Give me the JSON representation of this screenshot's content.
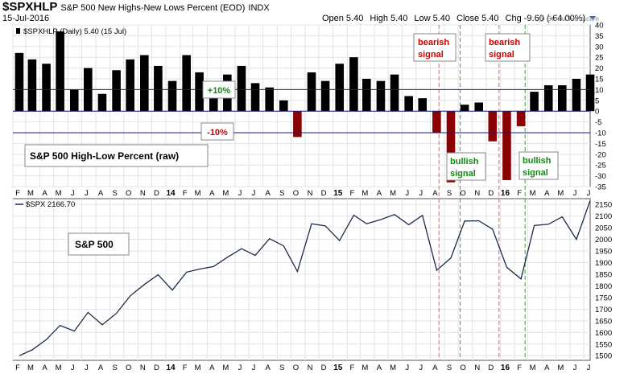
{
  "header": {
    "symbol": "$SPXHLP",
    "description": "S&P 500 New Highs-New Lows Percent (EOD)",
    "exchange": "INDX",
    "date": "15-Jul-2016",
    "open_label": "Open",
    "open_value": "5.40",
    "high_label": "High",
    "high_value": "5.40",
    "low_label": "Low",
    "low_value": "5.40",
    "close_label": "Close",
    "close_value": "5.40",
    "chg_label": "Chg",
    "chg_value": "-9.60 (-64.00%)",
    "watermark": "@ StockCharts.com"
  },
  "chart_data": [
    {
      "type": "bar",
      "legend": "$SPXHLP (Daily) 5.40 (15 Jul)",
      "ylim": [
        -35,
        40
      ],
      "yticks": [
        40,
        35,
        30,
        25,
        20,
        15,
        10,
        5,
        0,
        -5,
        -10,
        -15,
        -20,
        -25,
        -30,
        -35
      ],
      "reference_lines": [
        10,
        0,
        -10
      ],
      "x_start": "2013-02-01",
      "x_end": "2016-07-15",
      "colors": {
        "positive": "#000000",
        "negative": "#8b0000"
      },
      "series": [
        {
          "x": [
            "2013-02",
            "2013-03",
            "2013-04",
            "2013-05",
            "2013-06",
            "2013-07",
            "2013-08",
            "2013-09",
            "2013-10",
            "2013-11",
            "2013-12",
            "2014-01",
            "2014-02",
            "2014-03",
            "2014-04",
            "2014-05",
            "2014-06",
            "2014-07",
            "2014-08",
            "2014-09",
            "2014-10",
            "2014-11",
            "2014-12",
            "2015-01",
            "2015-02",
            "2015-03",
            "2015-04",
            "2015-05",
            "2015-06",
            "2015-07",
            "2015-08",
            "2015-09",
            "2015-10",
            "2015-11",
            "2015-12",
            "2016-01",
            "2016-02",
            "2016-03",
            "2016-04",
            "2016-05",
            "2016-06",
            "2016-07"
          ],
          "values": [
            27,
            24,
            22,
            37,
            10,
            20,
            8,
            19,
            24,
            26,
            21,
            14,
            26,
            18,
            13,
            17,
            21,
            13,
            11,
            5,
            -12,
            18,
            14,
            22,
            25,
            15,
            14,
            17,
            7,
            6,
            -10,
            -33,
            3,
            4,
            -14,
            -32,
            -7,
            9,
            12,
            12,
            15,
            17
          ]
        }
      ],
      "annotations": [
        "+10%",
        "-10%",
        "S&P 500 High-Low Percent (raw)",
        "bearish signal",
        "bearish signal",
        "bullish signal",
        "bullish signal"
      ]
    },
    {
      "type": "line",
      "legend": "$SPX 2166.70",
      "ylim": [
        1480,
        2175
      ],
      "yticks": [
        2150,
        2100,
        2050,
        2000,
        1950,
        1900,
        1850,
        1800,
        1750,
        1700,
        1650,
        1600,
        1550,
        1500
      ],
      "x_start": "2013-02-01",
      "x_end": "2016-07-15",
      "series": [
        {
          "name": "S&P 500",
          "x": [
            "2013-02",
            "2013-03",
            "2013-04",
            "2013-05",
            "2013-06",
            "2013-07",
            "2013-08",
            "2013-09",
            "2013-10",
            "2013-11",
            "2013-12",
            "2014-01",
            "2014-02",
            "2014-03",
            "2014-04",
            "2014-05",
            "2014-06",
            "2014-07",
            "2014-08",
            "2014-09",
            "2014-10",
            "2014-11",
            "2014-12",
            "2015-01",
            "2015-02",
            "2015-03",
            "2015-04",
            "2015-05",
            "2015-06",
            "2015-07",
            "2015-08",
            "2015-09",
            "2015-10",
            "2015-11",
            "2015-12",
            "2016-01",
            "2016-02",
            "2016-03",
            "2016-04",
            "2016-05",
            "2016-06",
            "2016-07"
          ],
          "values": [
            1500,
            1525,
            1569,
            1630,
            1606,
            1686,
            1633,
            1682,
            1757,
            1806,
            1848,
            1782,
            1859,
            1872,
            1883,
            1923,
            1960,
            1931,
            2003,
            1972,
            1862,
            2067,
            2058,
            1995,
            2104,
            2067,
            2085,
            2107,
            2063,
            2103,
            1867,
            1920,
            2079,
            2080,
            2044,
            1880,
            1830,
            2060,
            2065,
            2097,
            2000,
            2167
          ]
        }
      ]
    }
  ],
  "x_axis": {
    "labels": [
      {
        "date": "2013-02",
        "text": "F"
      },
      {
        "date": "2013-03",
        "text": "M"
      },
      {
        "date": "2013-04",
        "text": "A"
      },
      {
        "date": "2013-05",
        "text": "M"
      },
      {
        "date": "2013-06",
        "text": "J"
      },
      {
        "date": "2013-07",
        "text": "J"
      },
      {
        "date": "2013-08",
        "text": "A"
      },
      {
        "date": "2013-09",
        "text": "S"
      },
      {
        "date": "2013-10",
        "text": "O"
      },
      {
        "date": "2013-11",
        "text": "N"
      },
      {
        "date": "2013-12",
        "text": "D"
      },
      {
        "date": "2014-01",
        "text": "14",
        "bold": true
      },
      {
        "date": "2014-02",
        "text": "F"
      },
      {
        "date": "2014-03",
        "text": "M"
      },
      {
        "date": "2014-04",
        "text": "A"
      },
      {
        "date": "2014-05",
        "text": "M"
      },
      {
        "date": "2014-06",
        "text": "J"
      },
      {
        "date": "2014-07",
        "text": "J"
      },
      {
        "date": "2014-08",
        "text": "A"
      },
      {
        "date": "2014-09",
        "text": "S"
      },
      {
        "date": "2014-10",
        "text": "O"
      },
      {
        "date": "2014-11",
        "text": "N"
      },
      {
        "date": "2014-12",
        "text": "D"
      },
      {
        "date": "2015-01",
        "text": "15",
        "bold": true
      },
      {
        "date": "2015-02",
        "text": "F"
      },
      {
        "date": "2015-03",
        "text": "M"
      },
      {
        "date": "2015-04",
        "text": "A"
      },
      {
        "date": "2015-05",
        "text": "M"
      },
      {
        "date": "2015-06",
        "text": "J"
      },
      {
        "date": "2015-07",
        "text": "J"
      },
      {
        "date": "2015-08",
        "text": "A"
      },
      {
        "date": "2015-09",
        "text": "S"
      },
      {
        "date": "2015-10",
        "text": "O"
      },
      {
        "date": "2015-11",
        "text": "N"
      },
      {
        "date": "2015-12",
        "text": "D"
      },
      {
        "date": "2016-01",
        "text": "16",
        "bold": true
      },
      {
        "date": "2016-02",
        "text": "F"
      },
      {
        "date": "2016-03",
        "text": "M"
      },
      {
        "date": "2016-04",
        "text": "A"
      },
      {
        "date": "2016-05",
        "text": "M"
      },
      {
        "date": "2016-06",
        "text": "J"
      },
      {
        "date": "2016-07",
        "text": "J"
      }
    ]
  },
  "signal_lines": [
    {
      "date": "2015-08-20",
      "color": "#e06060"
    },
    {
      "date": "2015-10-05",
      "color": "#33aa33"
    },
    {
      "date": "2015-12-29",
      "color": "#e06060"
    },
    {
      "date": "2016-02-24",
      "color": "#33aa33"
    }
  ],
  "text_boxes": {
    "plus10": "+10%",
    "minus10": "-10%",
    "hl_title": "S&P 500 High-Low Percent (raw)",
    "bearish1_line1": "bearish",
    "bearish1_line2": "signal",
    "bearish2_line1": "bearish",
    "bearish2_line2": "signal",
    "bullish1_line1": "bullish",
    "bullish1_line2": "signal",
    "bullish2_line1": "bullish",
    "bullish2_line2": "signal",
    "spx_title": "S&P 500"
  },
  "colors": {
    "bearish": "#cc0000",
    "bullish": "#118811",
    "ref_line": "#1a1a7a",
    "price_line": "#1a2a4a"
  }
}
